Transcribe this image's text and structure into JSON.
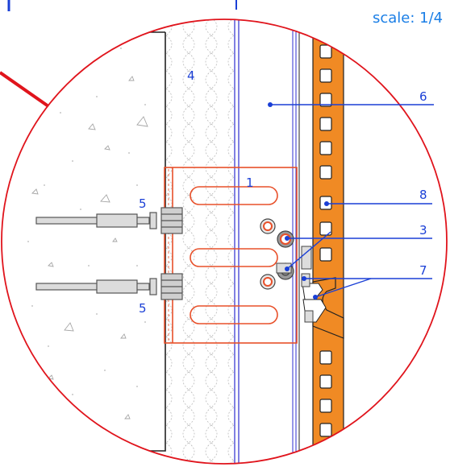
{
  "scale_text": "scale: 1/4",
  "callouts": {
    "c1": "1",
    "c3": "3",
    "c4": "4",
    "c5a": "5",
    "c5b": "5",
    "c6": "6",
    "c7": "7",
    "c8": "8"
  },
  "colors": {
    "outline_red": "#e0141c",
    "leader_blue": "#1a3fd6",
    "rail_orange": "#f08a24",
    "bracket_red": "#e8502a",
    "concrete_grey": "#8c8c8c"
  }
}
